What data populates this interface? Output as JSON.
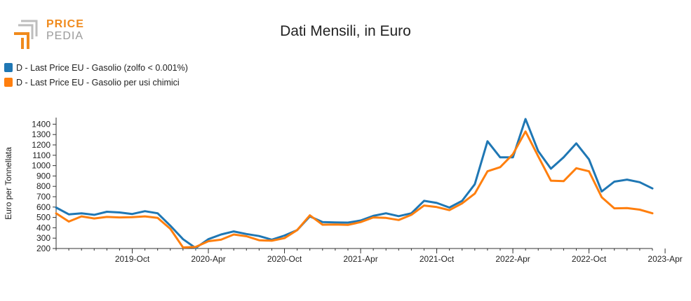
{
  "logo": {
    "text_top": "PRICE",
    "text_bottom": "PEDIA"
  },
  "chart_data": {
    "type": "line",
    "title": "Dati Mensili, in Euro",
    "ylabel": "Euro per Tonnellata",
    "xlabel": "",
    "ylim": [
      200,
      1450
    ],
    "yticks": [
      200,
      300,
      400,
      500,
      600,
      700,
      800,
      900,
      1000,
      1100,
      1200,
      1300,
      1400
    ],
    "xticks": [
      {
        "index": 6,
        "label": "2019-Oct"
      },
      {
        "index": 12,
        "label": "2020-Apr"
      },
      {
        "index": 18,
        "label": "2020-Oct"
      },
      {
        "index": 24,
        "label": "2021-Apr"
      },
      {
        "index": 30,
        "label": "2021-Oct"
      },
      {
        "index": 36,
        "label": "2022-Apr"
      },
      {
        "index": 42,
        "label": "2022-Oct"
      },
      {
        "index": 48,
        "label": "2023-Apr"
      }
    ],
    "x_start": "2019-Apr",
    "x_end": "2023-Apr",
    "grid": false,
    "legend_position": "top-left",
    "series": [
      {
        "name": "D - Last Price EU - Gasolio (zolfo < 0.001%)",
        "color": "#1f77b4",
        "values": [
          595,
          530,
          540,
          525,
          555,
          548,
          533,
          560,
          540,
          420,
          290,
          205,
          290,
          335,
          365,
          340,
          320,
          285,
          325,
          378,
          510,
          455,
          452,
          450,
          470,
          515,
          540,
          512,
          540,
          660,
          640,
          595,
          660,
          820,
          1235,
          1080,
          1080,
          1450,
          1140,
          970,
          1080,
          1215,
          1060,
          750,
          845,
          865,
          840,
          780
        ]
      },
      {
        "name": "D - Last Price EU - Gasolio per usi chimici",
        "color": "#ff7f0e",
        "values": [
          540,
          460,
          510,
          490,
          505,
          500,
          502,
          510,
          495,
          390,
          210,
          215,
          270,
          285,
          335,
          318,
          280,
          275,
          300,
          378,
          520,
          430,
          432,
          428,
          455,
          500,
          495,
          475,
          525,
          615,
          600,
          570,
          635,
          730,
          945,
          985,
          1110,
          1330,
          1090,
          855,
          850,
          975,
          945,
          695,
          588,
          590,
          575,
          540
        ]
      }
    ]
  }
}
